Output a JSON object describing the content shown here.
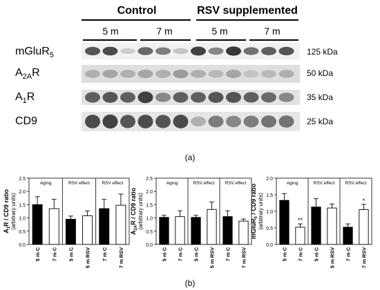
{
  "blot": {
    "group_labels": [
      "Control",
      "RSV supplemented"
    ],
    "age_labels": [
      "5 m",
      "7 m",
      "5 m",
      "7 m"
    ],
    "rows": [
      {
        "protein": "mGluR",
        "protein_sub": "5",
        "protein_suffix": "",
        "mw": "125 kDa",
        "band_intensity": [
          0.75,
          0.8,
          0.15,
          0.65,
          0.55,
          0.2,
          0.85,
          0.5,
          0.9,
          0.6,
          0.7,
          0.75
        ]
      },
      {
        "protein": "A",
        "protein_sub": "2A",
        "protein_suffix": "R",
        "mw": "50 kDa",
        "band_intensity": [
          0.3,
          0.35,
          0.3,
          0.35,
          0.3,
          0.4,
          0.3,
          0.25,
          0.35,
          0.2,
          0.25,
          0.3
        ]
      },
      {
        "protein": "A",
        "protein_sub": "1",
        "protein_suffix": "R",
        "mw": "35 kDa",
        "band_intensity": [
          0.7,
          0.75,
          0.7,
          0.85,
          0.5,
          0.7,
          0.7,
          0.75,
          0.75,
          0.7,
          0.65,
          0.5
        ]
      },
      {
        "protein": "CD9",
        "protein_sub": "",
        "protein_suffix": "",
        "mw": "25 kDa",
        "band_intensity": [
          0.8,
          0.85,
          0.75,
          0.8,
          0.75,
          0.8,
          0.3,
          0.55,
          0.5,
          0.55,
          0.6,
          0.6
        ]
      }
    ],
    "caption": "(a)"
  },
  "caption_b": "(b)",
  "colors": {
    "bar_dark": "#000000",
    "bar_light": "#ffffff"
  },
  "chart_data": [
    {
      "type": "bar",
      "ylabel_main": "A",
      "ylabel_sub": "1",
      "ylabel_rest": "R / CD9 ratio",
      "ylabel_units": "(arbitrary units)",
      "ylim": [
        0,
        2.5
      ],
      "yticks": [
        "0.0",
        "0.5",
        "1.0",
        "1.5",
        "2.0",
        "2.5"
      ],
      "panels": [
        "Aging",
        "RSV effect",
        "RSV effect"
      ],
      "categories": [
        "5 m C",
        "7 m C",
        "5 m C",
        "5 m RSV",
        "7 m C",
        "7 m RSV"
      ],
      "values": [
        1.5,
        1.35,
        0.95,
        1.08,
        1.35,
        1.48
      ],
      "errors": [
        0.3,
        0.35,
        0.12,
        0.18,
        0.35,
        0.42
      ],
      "fill": [
        "dark",
        "light",
        "dark",
        "light",
        "dark",
        "light"
      ],
      "annotations": [
        "",
        "",
        "",
        "",
        "",
        ""
      ]
    },
    {
      "type": "bar",
      "ylabel_main": "A",
      "ylabel_sub": "2A",
      "ylabel_rest": "R / CD9 ratio",
      "ylabel_units": "(arbitrary units)",
      "ylim": [
        0,
        2.5
      ],
      "yticks": [
        "0.0",
        "0.5",
        "1.0",
        "1.5",
        "2.0",
        "2.5"
      ],
      "panels": [
        "Aging",
        "RSV effect",
        "RSV effect"
      ],
      "categories": [
        "5 m C",
        "7 m C",
        "5 m C",
        "5 m RSV",
        "7 m C",
        "7 m RSV"
      ],
      "values": [
        1.02,
        1.05,
        1.02,
        1.32,
        1.05,
        0.88
      ],
      "errors": [
        0.08,
        0.22,
        0.08,
        0.28,
        0.22,
        0.08
      ],
      "fill": [
        "dark",
        "light",
        "dark",
        "light",
        "dark",
        "light"
      ],
      "annotations": [
        "",
        "",
        "",
        "",
        "",
        ""
      ]
    },
    {
      "type": "bar",
      "ylabel_main": "mGluR",
      "ylabel_sub": "5",
      "ylabel_rest": " / CD9 ratio",
      "ylabel_units": "(arbitrary units)",
      "ylim": [
        0,
        2.0
      ],
      "yticks": [
        "0.0",
        "0.5",
        "1.0",
        "1.5",
        "2.0"
      ],
      "panels": [
        "Aging",
        "RSV effect",
        "RSV effect"
      ],
      "categories": [
        "5 m C",
        "7 m C",
        "5 m C",
        "5 m RSV",
        "7 m C",
        "7 m RSV"
      ],
      "values": [
        1.33,
        0.52,
        1.13,
        1.1,
        0.52,
        1.05
      ],
      "errors": [
        0.2,
        0.1,
        0.25,
        0.12,
        0.1,
        0.16
      ],
      "fill": [
        "dark",
        "light",
        "dark",
        "light",
        "dark",
        "light"
      ],
      "annotations": [
        "",
        "**",
        "",
        "",
        "",
        "*"
      ]
    }
  ]
}
